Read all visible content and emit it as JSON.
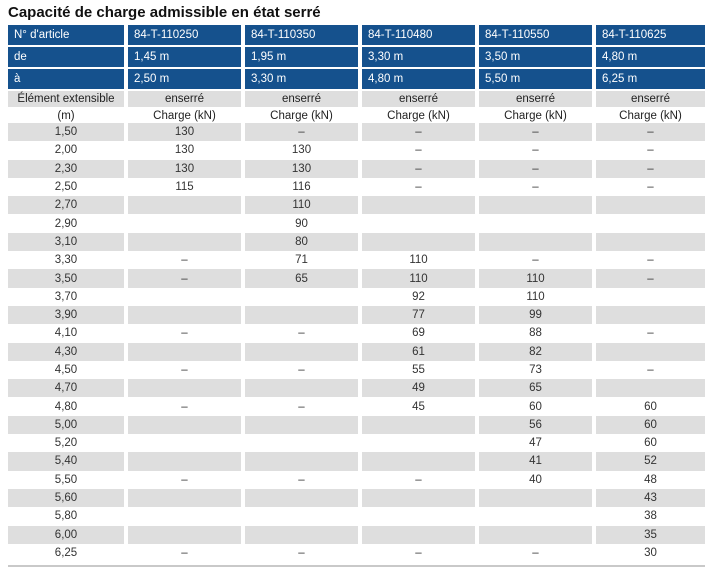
{
  "title": "Capacité de charge admissible en état serré",
  "colors": {
    "header_blue": "#15518d",
    "row_gray": "#dedede",
    "text_dark": "#333333",
    "header_text_white": "#ffffff"
  },
  "table": {
    "header": {
      "article_label": "N° d'article",
      "articles": [
        "84-T-110250",
        "84-T-110350",
        "84-T-110480",
        "84-T-110550",
        "84-T-110625"
      ],
      "from_label": "de",
      "from_values": [
        "1,45 m",
        "1,95 m",
        "3,30 m",
        "3,50 m",
        "4,80 m"
      ],
      "to_label": "à",
      "to_values": [
        "2,50 m",
        "3,30 m",
        "4,80 m",
        "5,50 m",
        "6,25 m"
      ],
      "element_label": "Élément extensible",
      "clamped_label": "enserré",
      "unit_label": "(m)",
      "load_label": "Charge (kN)"
    },
    "rows": [
      {
        "length": "1,50",
        "values": [
          "130",
          "–",
          "–",
          "–",
          "–"
        ]
      },
      {
        "length": "2,00",
        "values": [
          "130",
          "130",
          "–",
          "–",
          "–"
        ]
      },
      {
        "length": "2,30",
        "values": [
          "130",
          "130",
          "–",
          "–",
          "–"
        ]
      },
      {
        "length": "2,50",
        "values": [
          "115",
          "116",
          "–",
          "–",
          "–"
        ]
      },
      {
        "length": "2,70",
        "values": [
          "",
          "110",
          "",
          "",
          ""
        ]
      },
      {
        "length": "2,90",
        "values": [
          "",
          "90",
          "",
          "",
          ""
        ]
      },
      {
        "length": "3,10",
        "values": [
          "",
          "80",
          "",
          "",
          ""
        ]
      },
      {
        "length": "3,30",
        "values": [
          "–",
          "71",
          "110",
          "–",
          "–"
        ]
      },
      {
        "length": "3,50",
        "values": [
          "–",
          "65",
          "110",
          "110",
          "–"
        ]
      },
      {
        "length": "3,70",
        "values": [
          "",
          "",
          "92",
          "110",
          ""
        ]
      },
      {
        "length": "3,90",
        "values": [
          "",
          "",
          "77",
          "99",
          ""
        ]
      },
      {
        "length": "4,10",
        "values": [
          "–",
          "–",
          "69",
          "88",
          "–"
        ]
      },
      {
        "length": "4,30",
        "values": [
          "",
          "",
          "61",
          "82",
          ""
        ]
      },
      {
        "length": "4,50",
        "values": [
          "–",
          "–",
          "55",
          "73",
          "–"
        ]
      },
      {
        "length": "4,70",
        "values": [
          "",
          "",
          "49",
          "65",
          ""
        ]
      },
      {
        "length": "4,80",
        "values": [
          "–",
          "–",
          "45",
          "60",
          "60"
        ]
      },
      {
        "length": "5,00",
        "values": [
          "",
          "",
          "",
          "56",
          "60"
        ]
      },
      {
        "length": "5,20",
        "values": [
          "",
          "",
          "",
          "47",
          "60"
        ]
      },
      {
        "length": "5,40",
        "values": [
          "",
          "",
          "",
          "41",
          "52"
        ]
      },
      {
        "length": "5,50",
        "values": [
          "–",
          "–",
          "–",
          "40",
          "48"
        ]
      },
      {
        "length": "5,60",
        "values": [
          "",
          "",
          "",
          "",
          "43"
        ]
      },
      {
        "length": "5,80",
        "values": [
          "",
          "",
          "",
          "",
          "38"
        ]
      },
      {
        "length": "6,00",
        "values": [
          "",
          "",
          "",
          "",
          "35"
        ]
      },
      {
        "length": "6,25",
        "values": [
          "–",
          "–",
          "–",
          "–",
          "30"
        ]
      }
    ]
  }
}
